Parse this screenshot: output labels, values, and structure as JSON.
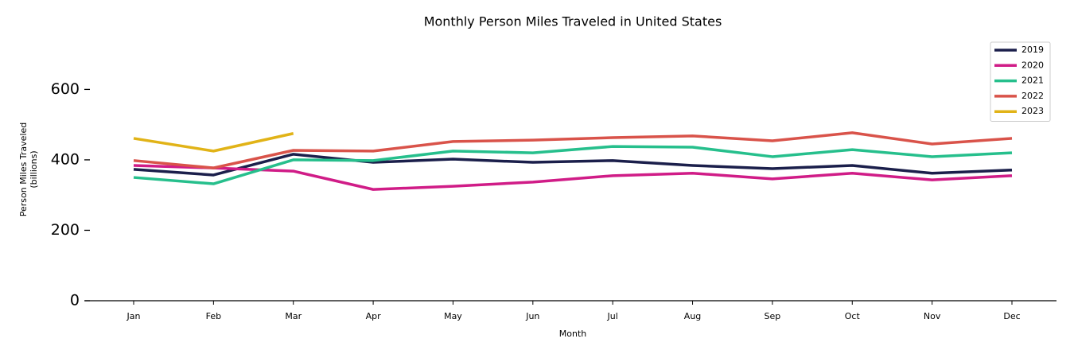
{
  "chart_data": {
    "type": "line",
    "title": "Monthly Person Miles Traveled in United States",
    "xlabel": "Month",
    "ylabel": [
      "Person Miles Traveled",
      "(billions)"
    ],
    "categories": [
      "Jan",
      "Feb",
      "Mar",
      "Apr",
      "May",
      "Jun",
      "Jul",
      "Aug",
      "Sep",
      "Oct",
      "Nov",
      "Dec"
    ],
    "series": [
      {
        "name": "2019",
        "color": "#1b1f4b",
        "values": [
          373,
          357,
          416,
          393,
          402,
          393,
          398,
          384,
          375,
          384,
          362,
          371
        ]
      },
      {
        "name": "2020",
        "color": "#d01c87",
        "values": [
          384,
          377,
          368,
          316,
          325,
          337,
          355,
          362,
          346,
          362,
          343,
          355
        ]
      },
      {
        "name": "2021",
        "color": "#26bf8c",
        "values": [
          350,
          332,
          400,
          398,
          425,
          420,
          438,
          436,
          409,
          429,
          409,
          420
        ]
      },
      {
        "name": "2022",
        "color": "#d9534a",
        "values": [
          398,
          377,
          427,
          425,
          452,
          456,
          463,
          468,
          454,
          477,
          445,
          461
        ]
      },
      {
        "name": "2023",
        "color": "#e1b317",
        "values": [
          461,
          425,
          475,
          null,
          null,
          null,
          null,
          null,
          null,
          null,
          null,
          null
        ]
      }
    ],
    "ylim": [
      0,
      750
    ],
    "yticks": [
      0,
      200,
      400,
      600
    ],
    "legend": "upper right"
  }
}
